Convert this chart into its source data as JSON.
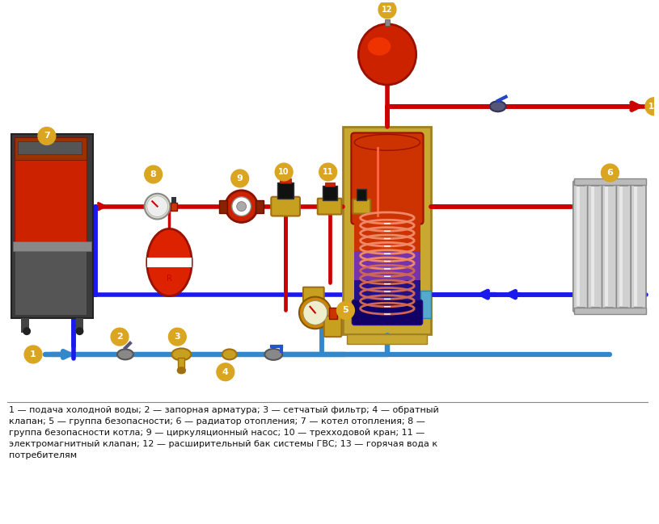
{
  "bg_color": "#ffffff",
  "red_pipe_color": "#cc0000",
  "blue_pipe_color": "#1a1aee",
  "blue_cold_color": "#3388cc",
  "pipe_lw": 4.0,
  "label_bg_color": "#DAA520",
  "legend_text": "1 — подача холодной воды; 2 — запорная арматура; 3 — сетчатый фильтр; 4 — обратный\nклапан; 5 — группа безопасности; 6 — радиатор отопления; 7 — котел отопления; 8 —\nгруппа безопасности котла; 9 — циркуляционный насос; 10 — трехходовой кран; 11 —\nэлектромагнитный клапан; 12 — расширительный бак системы ГВС; 13 — горячая вода к\nпотребителям"
}
